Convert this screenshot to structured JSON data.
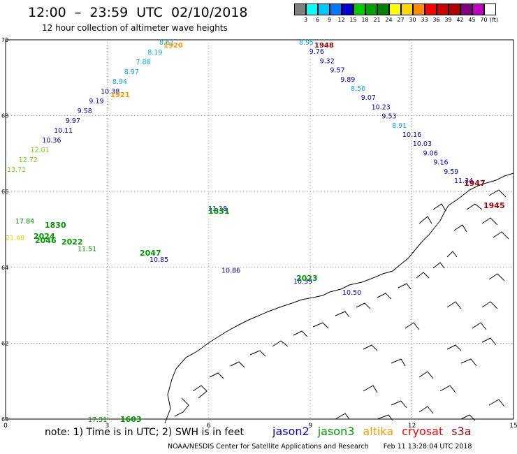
{
  "title": "12:00  –  23:59  UTC  02/10/2018",
  "subtitle": "12 hour collection of altimeter wave heights",
  "legend": {
    "unit": "(ft)",
    "colors": [
      "#808080",
      "#00ffff",
      "#00c8ff",
      "#0078ff",
      "#0000cd",
      "#00cc00",
      "#00a000",
      "#008000",
      "#ffff00",
      "#ffd700",
      "#ff8c00",
      "#ff0000",
      "#cc0000",
      "#b00000",
      "#800080",
      "#c000c0",
      "#ffffff"
    ],
    "labels": [
      "3",
      "6",
      "9",
      "12",
      "15",
      "18",
      "21",
      "24",
      "27",
      "30",
      "33",
      "36",
      "39",
      "42",
      "45",
      "70"
    ]
  },
  "axes": {
    "x_ticks": [
      "0",
      "3",
      "6",
      "9",
      "12",
      "15"
    ],
    "y_ticks": [
      "70",
      "68",
      "66",
      "64",
      "62",
      "60"
    ]
  },
  "satellites": [
    {
      "name": "jason2",
      "color": "#0000cc"
    },
    {
      "name": "jason3",
      "color": "#009900"
    },
    {
      "name": "altika",
      "color": "#ff9900"
    },
    {
      "name": "cryosat",
      "color": "#ff0000"
    },
    {
      "name": "s3a",
      "color": "#990000"
    }
  ],
  "note": "note:  1) Time is in UTC;  2) SWH is in feet",
  "credit_org": "NOAA/NESDIS Center for Satellite Applications and Research",
  "credit_time": "Feb 11 13:28:04 UTC 2018",
  "tracks": [
    {
      "id": "track-1920-1921",
      "time_labels": [
        {
          "text": "1920",
          "color": "#ff9900"
        },
        {
          "text": "1921",
          "color": "#ff9900"
        }
      ],
      "values": [
        {
          "v": "8.61",
          "c": "#00aaee"
        },
        {
          "v": "8.19",
          "c": "#00aaee"
        },
        {
          "v": "7.88",
          "c": "#00aaee"
        },
        {
          "v": "8.97",
          "c": "#00aaee"
        },
        {
          "v": "8.94",
          "c": "#00aaee"
        },
        {
          "v": "10.38",
          "c": "#0000cc"
        },
        {
          "v": "9.19",
          "c": "#0000cc"
        },
        {
          "v": "9.58",
          "c": "#0000cc"
        },
        {
          "v": "9.97",
          "c": "#0000cc"
        },
        {
          "v": "10.11",
          "c": "#0000cc"
        },
        {
          "v": "10.36",
          "c": "#0000cc"
        },
        {
          "v": "12.01",
          "c": "#66dd00"
        },
        {
          "v": "12.72",
          "c": "#66dd00"
        },
        {
          "v": "13.71",
          "c": "#66dd00"
        }
      ]
    },
    {
      "id": "track-1948",
      "time_labels": [
        {
          "text": "1948",
          "color": "#990000"
        }
      ],
      "values": [
        {
          "v": "8.95",
          "c": "#00aaee"
        },
        {
          "v": "9.76",
          "c": "#0000cc"
        },
        {
          "v": "9.32",
          "c": "#0000cc"
        },
        {
          "v": "9.57",
          "c": "#0000cc"
        },
        {
          "v": "9.89",
          "c": "#0000cc"
        },
        {
          "v": "8.56",
          "c": "#00aaee"
        },
        {
          "v": "9.07",
          "c": "#0000cc"
        },
        {
          "v": "10.23",
          "c": "#0000cc"
        },
        {
          "v": "9.53",
          "c": "#0000cc"
        },
        {
          "v": "8.91",
          "c": "#00aaee"
        },
        {
          "v": "10.16",
          "c": "#0000cc"
        },
        {
          "v": "10.03",
          "c": "#0000cc"
        },
        {
          "v": "9.06",
          "c": "#0000cc"
        },
        {
          "v": "9.16",
          "c": "#0000cc"
        },
        {
          "v": "9.59",
          "c": "#0000cc"
        },
        {
          "v": "11.34",
          "c": "#0000cc"
        }
      ]
    },
    {
      "id": "track-1945-1947",
      "time_labels": [
        {
          "text": "1947",
          "color": "#990000"
        },
        {
          "text": "1945",
          "color": "#990000"
        }
      ],
      "values": []
    },
    {
      "id": "track-1831-1830",
      "time_labels": [
        {
          "text": "1831",
          "color": "#009900"
        },
        {
          "text": "1830",
          "color": "#009900"
        }
      ],
      "values": [
        {
          "v": "17.84",
          "c": "#009900"
        },
        {
          "v": "11.18",
          "c": "#0000cc"
        }
      ]
    },
    {
      "id": "track-2047-2046",
      "time_labels": [
        {
          "text": "2046",
          "color": "#009900"
        },
        {
          "text": "2047",
          "color": "#009900"
        },
        {
          "text": "2024",
          "color": "#009900"
        },
        {
          "text": "2022",
          "color": "#009900"
        }
      ],
      "values": [
        {
          "v": "21.48",
          "c": "#dddd00"
        },
        {
          "v": "11.51",
          "c": "#009900"
        },
        {
          "v": "10.85",
          "c": "#0000cc"
        },
        {
          "v": "10.86",
          "c": "#0000cc"
        },
        {
          "v": "10.39",
          "c": "#0000cc"
        }
      ]
    },
    {
      "id": "track-2023",
      "time_labels": [
        {
          "text": "2023",
          "color": "#009900"
        }
      ],
      "values": [
        {
          "v": "10.50",
          "c": "#0000cc"
        }
      ]
    },
    {
      "id": "track-1603",
      "time_labels": [
        {
          "text": "1603",
          "color": "#009900"
        }
      ],
      "values": [
        {
          "v": "17.31",
          "c": "#009900"
        }
      ]
    }
  ]
}
